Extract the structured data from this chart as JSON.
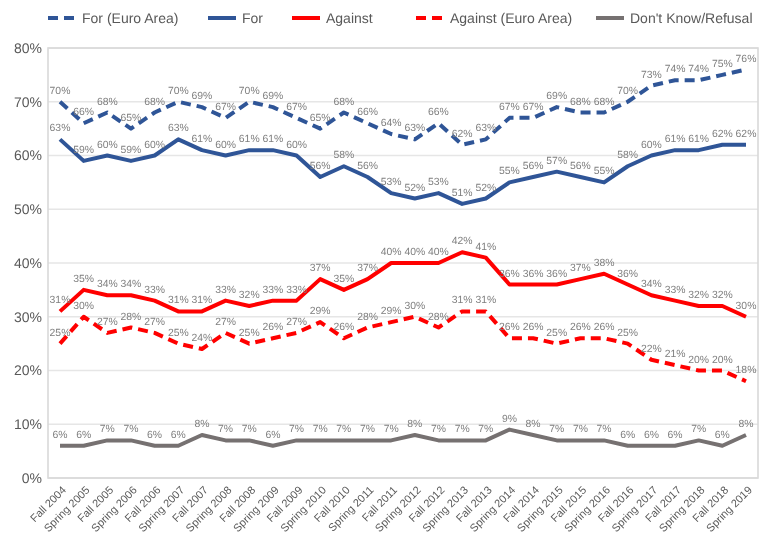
{
  "chart_data": {
    "type": "line",
    "categories": [
      "Fall 2004",
      "Spring 2005",
      "Fall 2005",
      "Spring 2006",
      "Fall 2006",
      "Spring 2007",
      "Fall 2007",
      "Spring 2008",
      "Fall 2008",
      "Spring 2009",
      "Fall 2009",
      "Spring 2010",
      "Fall 2010",
      "Spring 2011",
      "Fall 2011",
      "Spring 2012",
      "Fall 2012",
      "Spring 2013",
      "Fall 2013",
      "Spring 2014",
      "Fall 2014",
      "Spring 2015",
      "Fall 2015",
      "Spring 2016",
      "Fall 2016",
      "Spring 2017",
      "Fall 2017",
      "Spring 2018",
      "Fall 2018",
      "Spring 2019"
    ],
    "series": [
      {
        "name": "For (Euro Area)",
        "color": "#2f5597",
        "line_style": "dashed",
        "values": [
          70,
          66,
          68,
          65,
          68,
          70,
          69,
          67,
          70,
          69,
          67,
          65,
          68,
          66,
          64,
          63,
          66,
          62,
          63,
          67,
          67,
          69,
          68,
          68,
          70,
          73,
          74,
          74,
          75,
          76
        ],
        "value_labels": [
          "70%",
          "66%",
          "68%",
          "65%",
          "68%",
          "70%",
          "69%",
          "67%",
          "70%",
          "69%",
          "67%",
          "65%",
          "68%",
          "66%",
          "64%",
          "63%",
          "66%",
          "62%",
          "63%",
          "67%",
          "67%",
          "69%",
          "68%",
          "68%",
          "70%",
          "73%",
          "74%",
          "74%",
          "75%",
          "76%"
        ]
      },
      {
        "name": "For",
        "color": "#2f5597",
        "line_style": "solid",
        "values": [
          63,
          59,
          60,
          59,
          60,
          63,
          61,
          60,
          61,
          61,
          60,
          56,
          58,
          56,
          53,
          52,
          53,
          51,
          52,
          55,
          56,
          57,
          56,
          55,
          58,
          60,
          61,
          61,
          62,
          62
        ],
        "value_labels": [
          "63%",
          "59%",
          "60%",
          "59%",
          "60%",
          "63%",
          "61%",
          "60%",
          "61%",
          "61%",
          "60%",
          "56%",
          "58%",
          "56%",
          "53%",
          "52%",
          "53%",
          "51%",
          "52%",
          "55%",
          "56%",
          "57%",
          "56%",
          "55%",
          "58%",
          "60%",
          "61%",
          "61%",
          "62%",
          "62%"
        ]
      },
      {
        "name": "Against",
        "color": "#ff0000",
        "line_style": "solid",
        "values": [
          31,
          35,
          34,
          34,
          33,
          31,
          31,
          33,
          32,
          33,
          33,
          37,
          35,
          37,
          40,
          40,
          40,
          42,
          41,
          36,
          36,
          36,
          37,
          38,
          36,
          34,
          33,
          32,
          32,
          30
        ],
        "value_labels": [
          "31%",
          "35%",
          "34%",
          "34%",
          "33%",
          "31%",
          "31%",
          "33%",
          "32%",
          "33%",
          "33%",
          "37%",
          "35%",
          "37%",
          "40%",
          "40%",
          "40%",
          "42%",
          "41%",
          "36%",
          "36%",
          "36%",
          "37%",
          "38%",
          "36%",
          "34%",
          "33%",
          "32%",
          "32%",
          "30%"
        ]
      },
      {
        "name": "Against (Euro Area)",
        "color": "#ff0000",
        "line_style": "dashed",
        "values": [
          25,
          30,
          27,
          28,
          27,
          25,
          24,
          27,
          25,
          26,
          27,
          29,
          26,
          28,
          29,
          30,
          28,
          31,
          31,
          26,
          26,
          25,
          26,
          26,
          25,
          22,
          21,
          20,
          20,
          18
        ],
        "value_labels": [
          "25%",
          "30%",
          "27%",
          "28%",
          "27%",
          "25%",
          "24%",
          "27%",
          "25%",
          "26%",
          "27%",
          "29%",
          "26%",
          "28%",
          "29%",
          "30%",
          "28%",
          "31%",
          "31%",
          "26%",
          "26%",
          "25%",
          "26%",
          "26%",
          "25%",
          "22%",
          "21%",
          "20%",
          "20%",
          "18%"
        ]
      },
      {
        "name": "Don't Know/Refusal",
        "color": "#767171",
        "line_style": "solid",
        "values": [
          6,
          6,
          7,
          7,
          6,
          6,
          8,
          7,
          7,
          6,
          7,
          7,
          7,
          7,
          7,
          8,
          7,
          7,
          7,
          9,
          8,
          7,
          7,
          7,
          6,
          6,
          6,
          7,
          6,
          8
        ],
        "value_labels": [
          "6%",
          "6%",
          "7%",
          "7%",
          "6%",
          "6%",
          "8%",
          "7%",
          "7%",
          "6%",
          "7%",
          "7%",
          "7%",
          "7%",
          "7%",
          "8%",
          "7%",
          "7%",
          "7%",
          "9%",
          "8%",
          "7%",
          "7%",
          "7%",
          "6%",
          "6%",
          "6%",
          "7%",
          "6%",
          "8%"
        ]
      }
    ],
    "ylim": [
      0,
      80
    ],
    "yticks": [
      {
        "value": 0,
        "label": "0%"
      },
      {
        "value": 10,
        "label": "10%"
      },
      {
        "value": 20,
        "label": "20%"
      },
      {
        "value": 30,
        "label": "30%"
      },
      {
        "value": 40,
        "label": "40%"
      },
      {
        "value": 50,
        "label": "50%"
      },
      {
        "value": 60,
        "label": "60%"
      },
      {
        "value": 70,
        "label": "70%"
      },
      {
        "value": 80,
        "label": "80%"
      }
    ],
    "grid": "y",
    "legend": "top",
    "marker": "none"
  }
}
